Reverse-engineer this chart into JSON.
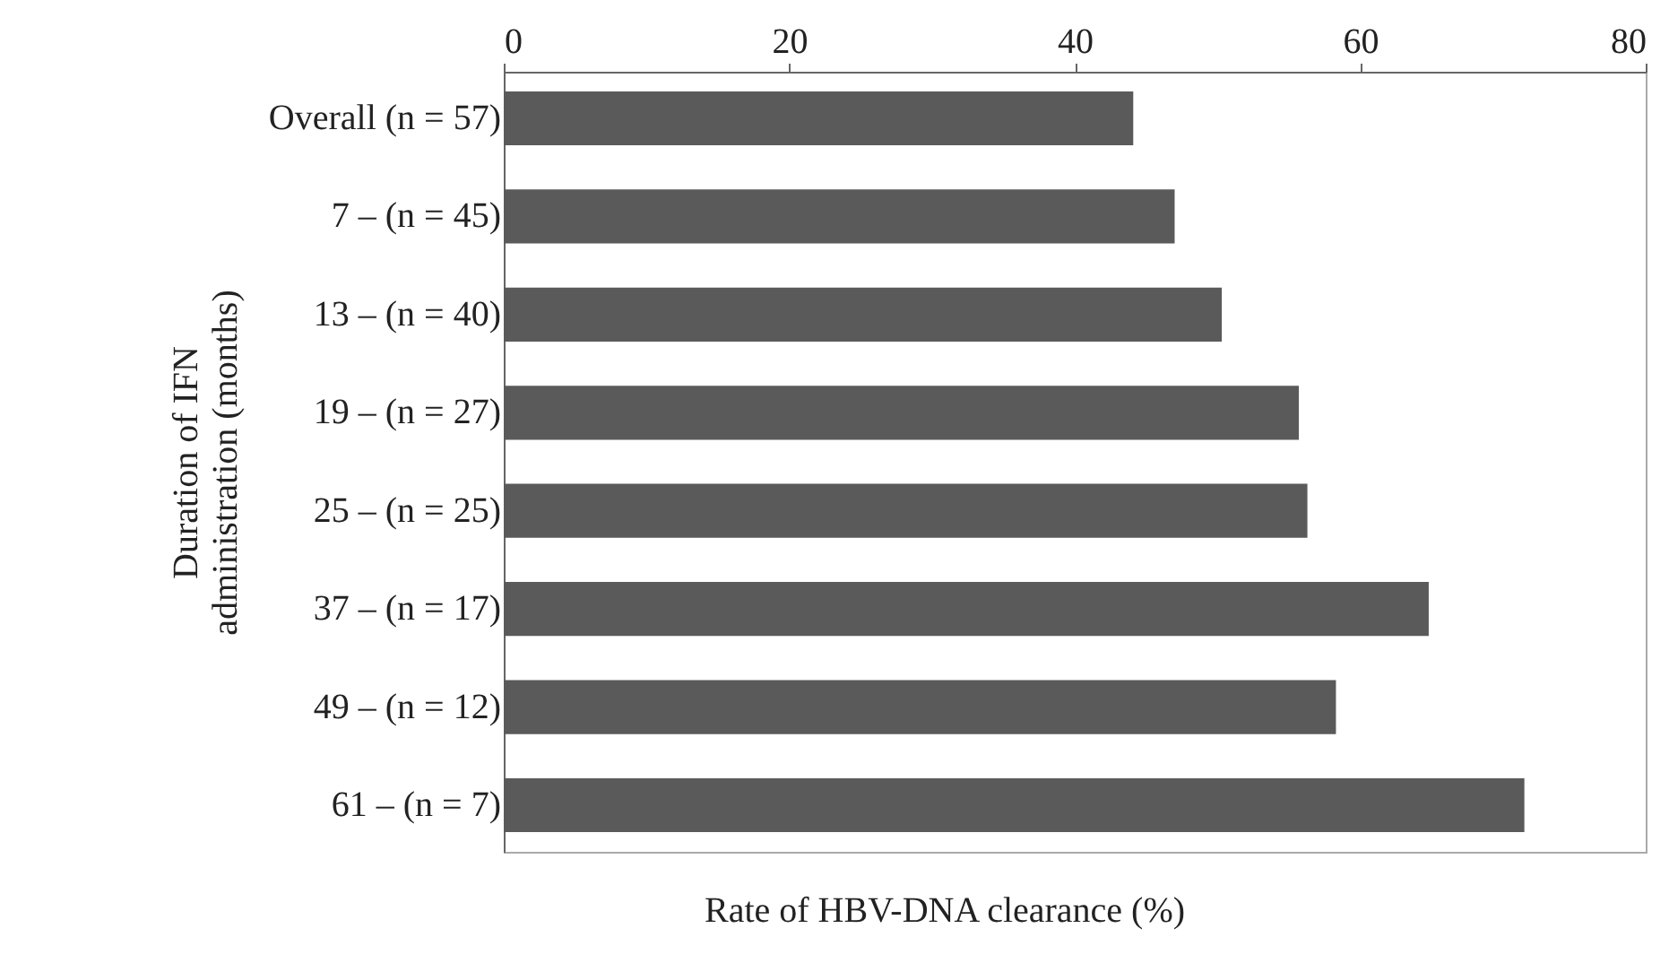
{
  "chart_data": {
    "type": "bar",
    "orientation": "horizontal",
    "xlabel": "Rate of HBV-DNA clearance (%)",
    "ylabel": "Duration of IFN\nadministration (months)",
    "categories": [
      "Overall (n = 57)",
      "7 – (n = 45)",
      "13 – (n = 40)",
      "19 – (n = 27)",
      "25 – (n = 25)",
      "37 – (n = 17)",
      "49 – (n = 12)",
      "61 – (n = 7)"
    ],
    "values": [
      44.1,
      47.0,
      50.3,
      55.7,
      56.3,
      64.8,
      58.3,
      71.5
    ],
    "color": "#5a5a5a",
    "xlim": [
      0,
      80
    ],
    "xticks": [
      0,
      20,
      40,
      60,
      80
    ],
    "grid": false
  }
}
